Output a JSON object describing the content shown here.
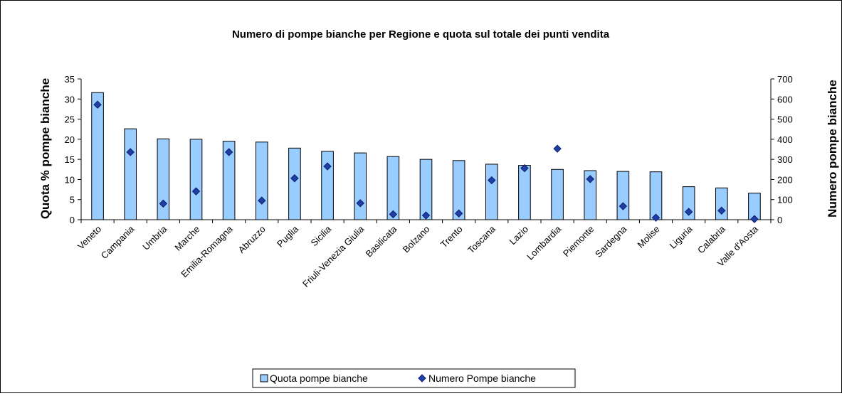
{
  "chart_data": {
    "type": "bar",
    "title": "Numero di pompe bianche per Regione e quota sul totale dei punti vendita",
    "ylabel_left": "Quota % pompe bianche",
    "ylabel_right": "Numero pompe bianche",
    "ylim_left": [
      0,
      35
    ],
    "yticks_left": [
      0,
      5,
      10,
      15,
      20,
      25,
      30,
      35
    ],
    "ylim_right": [
      0,
      700
    ],
    "yticks_right": [
      0,
      100,
      200,
      300,
      400,
      500,
      600,
      700
    ],
    "grid": false,
    "legend_position": "bottom",
    "categories": [
      "Veneto",
      "Campania",
      "Umbria",
      "Marche",
      "Emilia-Romagna",
      "Abruzzo",
      "Puglia",
      "Sicilia",
      "Friuli-Venezia Giulia",
      "Basilicata",
      "Bolzano",
      "Trento",
      "Toscana",
      "Lazio",
      "Lombardia",
      "Piemonte",
      "Sardegna",
      "Molise",
      "Liguria",
      "Calabria",
      "Valle d'Aosta"
    ],
    "series": [
      {
        "name": "Quota pompe bianche",
        "type": "bar",
        "axis": "left",
        "color": "#99ccff",
        "values": [
          31.6,
          22.6,
          20.1,
          20.0,
          19.5,
          19.3,
          17.8,
          17.0,
          16.6,
          15.7,
          15.0,
          14.7,
          13.8,
          13.5,
          12.5,
          12.2,
          12.0,
          11.9,
          8.2,
          7.9,
          6.6
        ]
      },
      {
        "name": "Numero Pompe bianche",
        "type": "scatter",
        "axis": "right",
        "color": "#1f3fa6",
        "values": [
          572,
          336,
          80,
          141,
          336,
          95,
          206,
          265,
          82,
          27,
          21,
          31,
          196,
          256,
          353,
          202,
          67,
          10,
          39,
          45,
          3
        ]
      }
    ]
  }
}
